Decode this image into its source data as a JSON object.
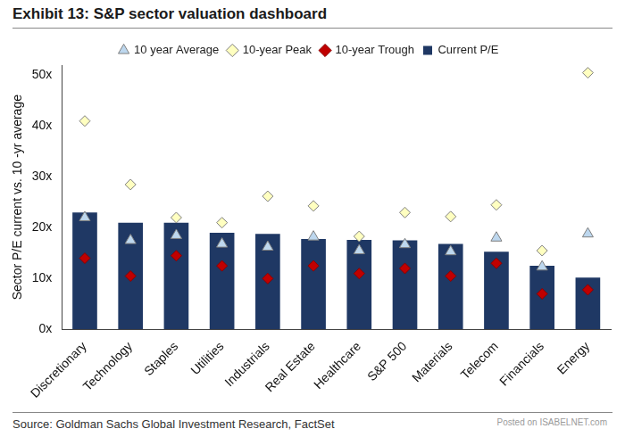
{
  "chart_data": {
    "type": "bar",
    "title": "Exhibit 13: S&P sector valuation dashboard",
    "y_label": "Sector P/E current vs. 10 -yr average",
    "source": "Source: Goldman Sachs Global Investment Research, FactSet",
    "watermark": "Posted on ISABELNET.com",
    "categories": [
      "Discretionary",
      "Technology",
      "Staples",
      "Utilities",
      "Industrials",
      "Real Estate",
      "Healthcare",
      "S&P 500",
      "Materials",
      "Telecom",
      "Financials",
      "Energy"
    ],
    "series": [
      {
        "name": "Current P/E",
        "type": "bar",
        "color": "#1f3864",
        "values": [
          23,
          21,
          21,
          19,
          18.8,
          17.8,
          17.6,
          17.5,
          16.8,
          15.3,
          12.5,
          10.2
        ]
      },
      {
        "name": "10 year Average",
        "type": "scatter",
        "marker": "triangle",
        "color": "#bdd7ee",
        "values": [
          22,
          17.5,
          18.5,
          16.8,
          16.2,
          18.2,
          15.5,
          16.7,
          15.3,
          18,
          12.3,
          18.8
        ]
      },
      {
        "name": "10-year Peak",
        "type": "scatter",
        "marker": "diamond",
        "color": "#ffffc0",
        "values": [
          41,
          28.5,
          22,
          21,
          26.2,
          24.3,
          18.3,
          23,
          22.2,
          24.5,
          15.5,
          50.5
        ]
      },
      {
        "name": "10-year Trough",
        "type": "scatter",
        "marker": "diamond",
        "color": "#c00000",
        "values": [
          14,
          10.5,
          14.5,
          12.5,
          10,
          12.5,
          11,
          12,
          10.5,
          13,
          7,
          7.8
        ]
      }
    ],
    "ylim": [
      0,
      52
    ],
    "yticks": [
      {
        "value": 0,
        "label": "0x"
      },
      {
        "value": 10,
        "label": "10x"
      },
      {
        "value": 20,
        "label": "20x"
      },
      {
        "value": 30,
        "label": "30x"
      },
      {
        "value": 40,
        "label": "40x"
      },
      {
        "value": 50,
        "label": "50x"
      }
    ],
    "grid": false,
    "legend": "top"
  }
}
